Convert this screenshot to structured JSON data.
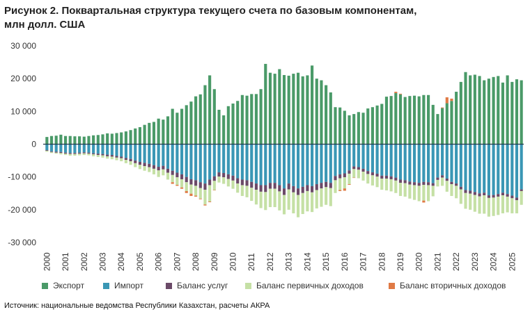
{
  "title_lines": [
    "Рисунок 2. Поквартальная  структура текущего счета по базовым компонентам,",
    "млн долл. США"
  ],
  "source": "Источник: национальные ведомства Республики Казахстан, расчеты АКРА",
  "colors": {
    "export": "#4a9a68",
    "import": "#3a97b5",
    "services": "#6b4a68",
    "primary": "#c5e0a5",
    "secondary": "#e07a45",
    "zero_line": "#1f3a4a"
  },
  "chart_data": {
    "type": "bar",
    "stacked": true,
    "x_tick_labels": [
      "2000",
      "2001",
      "2002",
      "2003",
      "2004",
      "2005",
      "2006",
      "2007",
      "2008",
      "2009",
      "2010",
      "2011",
      "2012",
      "2013",
      "2014",
      "2015",
      "2016",
      "2017",
      "2018",
      "2019",
      "2020",
      "2021",
      "2022",
      "2023",
      "2024",
      "2025"
    ],
    "y_tick_labels": [
      "30 000",
      "20 000",
      "10 000",
      "0",
      "-10 000",
      "-20 000",
      "-30 000"
    ],
    "ylim": [
      -30000,
      30000
    ],
    "grid": false,
    "legend_position": "bottom",
    "series": [
      {
        "name": "Экспорт",
        "color_key": "export",
        "values": [
          2200,
          2500,
          2600,
          2900,
          2500,
          2500,
          2400,
          2400,
          2300,
          2500,
          2700,
          2800,
          3000,
          3300,
          3200,
          3400,
          3600,
          3900,
          4300,
          4800,
          5200,
          5900,
          6500,
          6800,
          7800,
          7500,
          8500,
          10800,
          9600,
          10800,
          11900,
          13000,
          14600,
          15200,
          18000,
          21000,
          16800,
          10500,
          8800,
          11600,
          12400,
          13200,
          15000,
          14800,
          15300,
          15300,
          16800,
          24500,
          21800,
          21500,
          22900,
          21100,
          20900,
          21500,
          21800,
          20700,
          21000,
          24000,
          20000,
          19500,
          18000,
          15800,
          11300,
          11200,
          10200,
          8800,
          9200,
          9800,
          9600,
          10900,
          11300,
          11800,
          12300,
          14500,
          14700,
          15600,
          15200,
          14400,
          14700,
          14800,
          14600,
          15000,
          15000,
          12000,
          9200,
          11000,
          12500,
          13200,
          16000,
          19000,
          22000,
          21000,
          21200,
          20800,
          19500,
          20000,
          20500,
          20800,
          18800,
          21000,
          19000,
          19800,
          19500
        ],
        "labels": "by_year"
      },
      {
        "name": "Импорт",
        "color_key": "import",
        "values": [
          -1800,
          -2200,
          -2300,
          -2400,
          -2600,
          -2700,
          -2700,
          -2600,
          -2500,
          -2600,
          -2800,
          -2900,
          -3000,
          -3200,
          -3300,
          -3600,
          -3800,
          -4200,
          -4500,
          -5000,
          -5400,
          -5700,
          -6000,
          -6400,
          -6900,
          -6600,
          -7500,
          -8100,
          -8700,
          -9200,
          -10000,
          -10700,
          -11000,
          -11600,
          -12000,
          -10800,
          -9800,
          -8600,
          -8800,
          -9200,
          -9600,
          -10400,
          -10800,
          -11000,
          -11500,
          -12000,
          -12500,
          -12500,
          -11800,
          -11800,
          -12500,
          -13500,
          -12000,
          -12800,
          -13500,
          -13000,
          -12500,
          -12800,
          -12200,
          -11800,
          -11500,
          -11800,
          -9700,
          -9200,
          -8900,
          -8000,
          -6800,
          -7000,
          -7500,
          -8200,
          -8600,
          -9000,
          -9600,
          -9600,
          -9800,
          -10200,
          -10800,
          -11000,
          -11400,
          -11600,
          -11800,
          -11500,
          -11600,
          -11900,
          -10200,
          -9500,
          -10500,
          -11500,
          -12000,
          -13000,
          -14000,
          -14200,
          -14600,
          -15000,
          -14800,
          -15600,
          -15500,
          -15200,
          -14800,
          -15200,
          -15700,
          -16300,
          -13800
        ],
        "labels": "by_year"
      },
      {
        "name": "Баланс услуг",
        "color_key": "services",
        "values": [
          -200,
          -200,
          -300,
          -300,
          -300,
          -300,
          -300,
          -300,
          -300,
          -300,
          -300,
          -400,
          -400,
          -500,
          -500,
          -500,
          -500,
          -600,
          -700,
          -800,
          -900,
          -1000,
          -1000,
          -1100,
          -1100,
          -1100,
          -1200,
          -1300,
          -1400,
          -1500,
          -1600,
          -1600,
          -1700,
          -1800,
          -1900,
          -1700,
          -1400,
          -1300,
          -1300,
          -1400,
          -1500,
          -1600,
          -1700,
          -1700,
          -1800,
          -1900,
          -2000,
          -2100,
          -1800,
          -1800,
          -1900,
          -2000,
          -1800,
          -1900,
          -2000,
          -1900,
          -1800,
          -1900,
          -1800,
          -1700,
          -1600,
          -1600,
          -1300,
          -1200,
          -1200,
          -1000,
          -800,
          -800,
          -900,
          -900,
          -900,
          -900,
          -900,
          -900,
          -900,
          -900,
          -1000,
          -900,
          -900,
          -900,
          -900,
          -900,
          -900,
          -800,
          -700,
          -700,
          -700,
          -700,
          -700,
          -800,
          -900,
          -900,
          -900,
          -900,
          -800,
          -800,
          -800,
          -800,
          -800,
          -800,
          -800,
          -800,
          -500
        ],
        "labels": "by_year"
      },
      {
        "name": "Баланс первичных доходов",
        "color_key": "primary",
        "values": [
          -300,
          -300,
          -300,
          -400,
          -400,
          -500,
          -500,
          -500,
          -500,
          -500,
          -600,
          -600,
          -700,
          -700,
          -800,
          -800,
          -900,
          -1000,
          -1100,
          -1200,
          -1300,
          -1400,
          -1500,
          -1700,
          -2000,
          -1800,
          -2100,
          -2200,
          -2300,
          -2500,
          -2700,
          -2800,
          -3000,
          -3200,
          -4500,
          -5000,
          -2800,
          -1800,
          -2000,
          -2300,
          -2500,
          -2800,
          -3300,
          -3500,
          -4000,
          -4500,
          -5000,
          -5500,
          -5600,
          -5600,
          -5800,
          -5900,
          -6200,
          -6400,
          -6800,
          -6400,
          -6200,
          -6000,
          -5600,
          -5600,
          -5400,
          -5500,
          -3900,
          -3600,
          -3400,
          -3200,
          -2600,
          -2600,
          -2700,
          -2900,
          -3100,
          -3200,
          -3400,
          -3600,
          -3700,
          -3800,
          -4000,
          -4100,
          -4300,
          -4500,
          -4700,
          -4800,
          -4900,
          -3200,
          -2000,
          -2500,
          -3300,
          -3600,
          -3800,
          -4400,
          -4800,
          -4900,
          -5100,
          -5300,
          -5600,
          -5700,
          -5600,
          -5600,
          -5500,
          -4800,
          -4600,
          -4000,
          -4200
        ],
        "labels": "by_year"
      },
      {
        "name": "Баланс вторичных доходов",
        "color_key": "secondary",
        "values": [
          0,
          0,
          0,
          0,
          0,
          0,
          0,
          0,
          0,
          0,
          0,
          0,
          0,
          0,
          0,
          0,
          0,
          0,
          0,
          0,
          0,
          0,
          0,
          0,
          0,
          0,
          0,
          -500,
          -300,
          -400,
          -600,
          -700,
          -300,
          -200,
          -300,
          -200,
          -100,
          0,
          0,
          0,
          0,
          0,
          0,
          0,
          0,
          0,
          0,
          0,
          0,
          0,
          0,
          0,
          0,
          0,
          0,
          0,
          0,
          0,
          0,
          0,
          0,
          0,
          0,
          -300,
          -700,
          -200,
          -100,
          0,
          0,
          0,
          0,
          0,
          0,
          0,
          0,
          400,
          200,
          0,
          0,
          0,
          0,
          -600,
          0,
          0,
          0,
          200,
          1800,
          700,
          0,
          0,
          0,
          0,
          0,
          0,
          0,
          0,
          0,
          0,
          0,
          0,
          0,
          0,
          0
        ],
        "labels": "by_year"
      }
    ],
    "quarters_per_year": 4,
    "first_year": "2000"
  }
}
